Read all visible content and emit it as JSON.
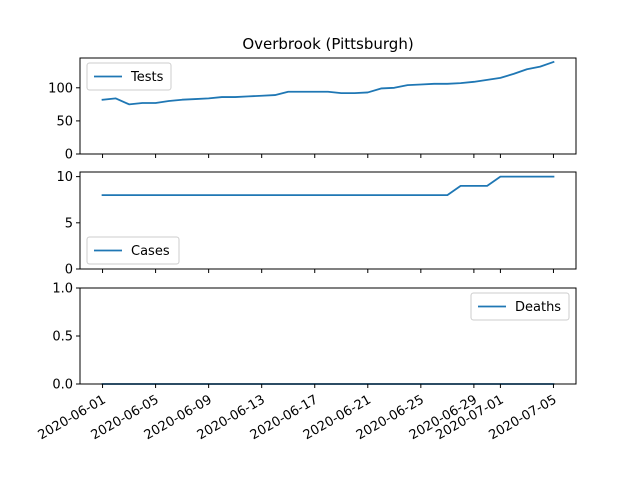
{
  "chart_data": {
    "type": "line",
    "title": "Overbrook (Pittsburgh)",
    "colors": {
      "line": "#1f77b4"
    },
    "x": [
      "2020-06-01",
      "2020-06-02",
      "2020-06-03",
      "2020-06-04",
      "2020-06-05",
      "2020-06-06",
      "2020-06-07",
      "2020-06-08",
      "2020-06-09",
      "2020-06-10",
      "2020-06-11",
      "2020-06-12",
      "2020-06-13",
      "2020-06-14",
      "2020-06-15",
      "2020-06-16",
      "2020-06-17",
      "2020-06-18",
      "2020-06-19",
      "2020-06-20",
      "2020-06-21",
      "2020-06-22",
      "2020-06-23",
      "2020-06-24",
      "2020-06-25",
      "2020-06-26",
      "2020-06-27",
      "2020-06-28",
      "2020-06-29",
      "2020-06-30",
      "2020-07-01",
      "2020-07-02",
      "2020-07-03",
      "2020-07-04",
      "2020-07-05"
    ],
    "x_tick_labels": [
      "2020-06-01",
      "2020-06-05",
      "2020-06-09",
      "2020-06-13",
      "2020-06-17",
      "2020-06-21",
      "2020-06-25",
      "2020-06-29",
      "2020-07-01",
      "2020-07-05"
    ],
    "panels": [
      {
        "name": "Tests",
        "legend": "upper left",
        "ylim": [
          0,
          145
        ],
        "yticks": [
          0,
          50,
          100
        ],
        "ytick_labels": [
          "0",
          "50",
          "100"
        ],
        "values": [
          82,
          84,
          75,
          77,
          77,
          80,
          82,
          83,
          84,
          86,
          86,
          87,
          88,
          89,
          94,
          94,
          94,
          94,
          92,
          92,
          93,
          99,
          100,
          104,
          105,
          106,
          106,
          107,
          109,
          112,
          115,
          121,
          128,
          132,
          139
        ]
      },
      {
        "name": "Cases",
        "legend": "lower left",
        "ylim": [
          0,
          10.5
        ],
        "yticks": [
          0,
          5,
          10
        ],
        "ytick_labels": [
          "0",
          "5",
          "10"
        ],
        "values": [
          8,
          8,
          8,
          8,
          8,
          8,
          8,
          8,
          8,
          8,
          8,
          8,
          8,
          8,
          8,
          8,
          8,
          8,
          8,
          8,
          8,
          8,
          8,
          8,
          8,
          8,
          8,
          9,
          9,
          9,
          10,
          10,
          10,
          10,
          10
        ]
      },
      {
        "name": "Deaths",
        "legend": "upper right",
        "ylim": [
          0,
          1
        ],
        "yticks": [
          0,
          0.5,
          1
        ],
        "ytick_labels": [
          "0.0",
          "0.5",
          "1.0"
        ],
        "values": [
          0,
          0,
          0,
          0,
          0,
          0,
          0,
          0,
          0,
          0,
          0,
          0,
          0,
          0,
          0,
          0,
          0,
          0,
          0,
          0,
          0,
          0,
          0,
          0,
          0,
          0,
          0,
          0,
          0,
          0,
          0,
          0,
          0,
          0,
          0
        ]
      }
    ]
  }
}
